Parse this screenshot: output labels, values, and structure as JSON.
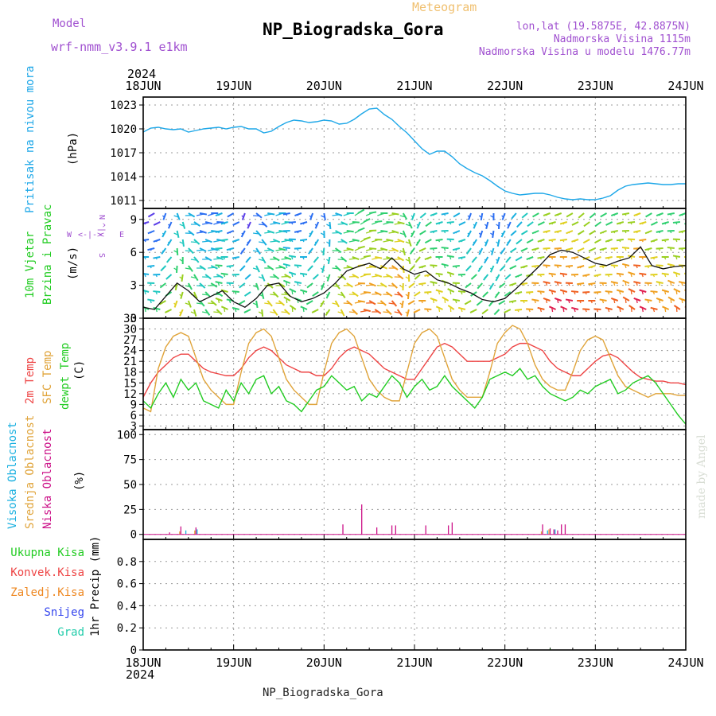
{
  "header": {
    "model_label": "Model",
    "model_name": "wrf-nmm_v3.9.1  e1km",
    "product": "Meteogram",
    "station": "NP_Biogradska_Gora",
    "lonlat": "lon,lat (19.5875E, 42.8875N)",
    "altitude": "Nadmorska Visina 1115m",
    "model_altitude": "Nadmorska Visina u modelu 1476.77m",
    "watermark": "made by Angel",
    "footer_station": "NP_Biogradska_Gora"
  },
  "colors": {
    "pressure": "#1da7e8",
    "temp2m": "#ee4444",
    "sfc": "#e0a43a",
    "dewpt": "#22cc22",
    "high_cloud": "#1ab0e0",
    "mid_cloud": "#e0a43a",
    "low_cloud": "#cc1188",
    "model": "#a050d0",
    "total_precip": "#22cc22",
    "conv_precip": "#ee4444",
    "frz_precip": "#ee8822",
    "snow": "#3344ee",
    "grad": "#22ccaa"
  },
  "chart_data": {
    "type": "line",
    "time_axis": {
      "year": "2024",
      "start": "2024-06-18T00",
      "end": "2024-06-24T00",
      "ticks": [
        "18JUN",
        "19JUN",
        "20JUN",
        "21JUN",
        "22JUN",
        "23JUN",
        "24JUN"
      ]
    },
    "panels": [
      {
        "id": "pressure",
        "title": "Pritisak na nivou mora",
        "unit": "(hPa)",
        "ylim": [
          1010,
          1024
        ],
        "yticks": [
          1011,
          1014,
          1017,
          1020,
          1023
        ],
        "series": [
          {
            "name": "Pritisak na nivou mora",
            "hours": [
              0,
              2,
              4,
              6,
              8,
              10,
              12,
              14,
              16,
              18,
              20,
              22,
              24,
              26,
              28,
              30,
              32,
              34,
              36,
              38,
              40,
              42,
              44,
              46,
              48,
              50,
              52,
              54,
              56,
              58,
              60,
              62,
              64,
              66,
              68,
              70,
              72,
              74,
              76,
              78,
              80,
              82,
              84,
              86,
              88,
              90,
              92,
              94,
              96,
              98,
              100,
              102,
              104,
              106,
              108,
              110,
              112,
              114,
              116,
              118,
              120,
              122,
              124,
              126,
              128,
              130,
              132,
              134,
              136,
              138,
              140,
              142,
              144
            ],
            "values": [
              1019.6,
              1020.1,
              1020.2,
              1020.0,
              1019.9,
              1020.0,
              1019.6,
              1019.8,
              1020.0,
              1020.1,
              1020.2,
              1020.0,
              1020.2,
              1020.3,
              1020.0,
              1020.0,
              1019.5,
              1019.7,
              1020.3,
              1020.8,
              1021.1,
              1021.0,
              1020.8,
              1020.9,
              1021.1,
              1021.0,
              1020.6,
              1020.7,
              1021.2,
              1021.9,
              1022.5,
              1022.6,
              1021.8,
              1021.2,
              1020.3,
              1019.5,
              1018.5,
              1017.5,
              1016.8,
              1017.2,
              1017.2,
              1016.5,
              1015.6,
              1015.0,
              1014.5,
              1014.1,
              1013.5,
              1012.8,
              1012.2,
              1011.9,
              1011.7,
              1011.8,
              1011.9,
              1011.9,
              1011.7,
              1011.4,
              1011.2,
              1011.1,
              1011.2,
              1011.1,
              1011.1,
              1011.3,
              1011.6,
              1012.3,
              1012.8,
              1013.0,
              1013.1,
              1013.2,
              1013.1,
              1013.0,
              1013.0,
              1013.1,
              1013.1
            ]
          }
        ]
      },
      {
        "id": "wind",
        "title_line1": "10m Vjetar",
        "title_line2": "Brzina i Pravac",
        "unit": "(m/s)",
        "ylim": [
          0,
          10
        ],
        "yticks": [
          0,
          3,
          6,
          9
        ],
        "compass_labels": [
          "W",
          "<-|->",
          "E",
          "N",
          "^",
          "v",
          "S"
        ],
        "series": [
          {
            "name": "10m Vjetar",
            "hours": [
              0,
              3,
              6,
              9,
              12,
              15,
              18,
              21,
              24,
              27,
              30,
              33,
              36,
              39,
              42,
              45,
              48,
              51,
              54,
              57,
              60,
              63,
              66,
              69,
              72,
              75,
              78,
              81,
              84,
              87,
              90,
              93,
              96,
              99,
              102,
              105,
              108,
              111,
              114,
              117,
              120,
              123,
              126,
              129,
              132,
              135,
              138,
              141,
              144
            ],
            "values": [
              1.0,
              0.8,
              2.0,
              3.2,
              2.5,
              1.5,
              2.0,
              2.5,
              1.5,
              1.0,
              1.8,
              3.0,
              3.2,
              2.0,
              1.5,
              1.8,
              2.3,
              3.2,
              4.3,
              4.7,
              5.0,
              4.5,
              5.5,
              4.5,
              4.0,
              4.3,
              3.5,
              3.2,
              2.7,
              2.3,
              1.7,
              1.5,
              1.8,
              2.7,
              3.7,
              4.7,
              5.8,
              6.2,
              6.0,
              5.5,
              5.0,
              4.8,
              5.2,
              5.5,
              6.5,
              4.8,
              4.5,
              4.7,
              4.8
            ],
            "direction_vectors_deg": [
              250,
              240,
              200,
              160,
              120,
              100,
              90,
              250,
              240,
              200,
              130,
              100,
              90,
              260,
              250,
              200,
              170,
              110,
              90,
              60,
              80,
              90,
              100,
              150,
              200,
              230,
              250,
              260,
              240,
              200,
              190,
              180,
              200,
              220,
              230,
              240,
              250,
              250,
              240,
              230,
              230,
              240,
              250,
              260,
              250,
              240,
              250,
              260,
              250
            ]
          }
        ]
      },
      {
        "id": "temperature",
        "title_line1": "2m Temp",
        "title_line2": "SFC Temp",
        "title_line3": "dewpt Temp",
        "unit": "(C)",
        "ylim": [
          2,
          33
        ],
        "yticks": [
          3,
          6,
          9,
          12,
          15,
          18,
          21,
          24,
          27,
          30,
          33
        ],
        "series": [
          {
            "name": "2m Temp",
            "hours": [
              0,
              2,
              4,
              6,
              8,
              10,
              12,
              14,
              16,
              18,
              20,
              22,
              24,
              26,
              28,
              30,
              32,
              34,
              36,
              38,
              40,
              42,
              44,
              46,
              48,
              50,
              52,
              54,
              56,
              58,
              60,
              62,
              64,
              66,
              68,
              70,
              72,
              74,
              76,
              78,
              80,
              82,
              84,
              86,
              88,
              90,
              92,
              94,
              96,
              98,
              100,
              102,
              104,
              106,
              108,
              110,
              112,
              114,
              116,
              118,
              120,
              122,
              124,
              126,
              128,
              130,
              132,
              134,
              136,
              138,
              140,
              142,
              144
            ],
            "values": [
              11,
              15,
              18,
              20,
              22,
              23,
              23,
              21,
              19,
              18,
              17.5,
              17,
              17,
              19,
              22,
              24,
              25,
              24,
              22,
              20,
              19,
              18,
              18,
              17,
              17,
              19,
              22,
              24,
              25,
              24,
              23,
              21,
              19,
              18,
              17,
              16,
              16,
              19,
              22,
              25,
              26,
              25,
              23,
              21,
              21,
              21,
              21,
              22,
              23,
              25,
              26,
              26,
              25,
              24,
              21,
              19,
              18,
              17,
              17,
              19,
              21,
              22.5,
              23,
              22,
              20,
              18,
              16.5,
              16,
              15.5,
              15.5,
              15,
              15,
              14.5
            ]
          },
          {
            "name": "SFC Temp",
            "hours": [
              0,
              2,
              4,
              6,
              8,
              10,
              12,
              14,
              16,
              18,
              20,
              22,
              24,
              26,
              28,
              30,
              32,
              34,
              36,
              38,
              40,
              42,
              44,
              46,
              48,
              50,
              52,
              54,
              56,
              58,
              60,
              62,
              64,
              66,
              68,
              70,
              72,
              74,
              76,
              78,
              80,
              82,
              84,
              86,
              88,
              90,
              92,
              94,
              96,
              98,
              100,
              102,
              104,
              106,
              108,
              110,
              112,
              114,
              116,
              118,
              120,
              122,
              124,
              126,
              128,
              130,
              132,
              134,
              136,
              138,
              140,
              142,
              144
            ],
            "values": [
              8,
              7,
              19,
              25,
              28,
              29,
              28,
              22,
              16,
              13,
              11,
              9,
              9,
              18,
              26,
              29,
              30,
              28,
              22,
              16,
              13,
              11,
              9,
              9,
              18,
              26,
              29,
              30,
              28,
              22,
              16,
              13,
              11,
              10,
              10,
              18,
              26,
              29,
              30,
              28,
              22,
              16,
              13,
              11,
              11,
              11,
              18,
              26,
              29,
              31,
              30,
              26,
              20,
              16,
              14,
              13,
              13,
              18,
              24,
              27,
              28,
              27,
              22,
              17,
              14,
              13,
              12,
              11,
              12,
              12,
              12,
              11.5,
              11.5
            ]
          },
          {
            "name": "dewpt Temp",
            "hours": [
              0,
              2,
              4,
              6,
              8,
              10,
              12,
              14,
              16,
              18,
              20,
              22,
              24,
              26,
              28,
              30,
              32,
              34,
              36,
              38,
              40,
              42,
              44,
              46,
              48,
              50,
              52,
              54,
              56,
              58,
              60,
              62,
              64,
              66,
              68,
              70,
              72,
              74,
              76,
              78,
              80,
              82,
              84,
              86,
              88,
              90,
              92,
              94,
              96,
              98,
              100,
              102,
              104,
              106,
              108,
              110,
              112,
              114,
              116,
              118,
              120,
              122,
              124,
              126,
              128,
              130,
              132,
              134,
              136,
              138,
              140,
              142,
              144
            ],
            "values": [
              10,
              8,
              12,
              15,
              11,
              16,
              13,
              15,
              10,
              9,
              8,
              13,
              10,
              15,
              12,
              16,
              17,
              12,
              14,
              10,
              9,
              7,
              10,
              13,
              14,
              17,
              15,
              13,
              14,
              10,
              12,
              11,
              14,
              17,
              15,
              11,
              14,
              16,
              13,
              14,
              17,
              14,
              12,
              10,
              8,
              11,
              16,
              17,
              18,
              17,
              19,
              16,
              17,
              14,
              12,
              11,
              10,
              11,
              13,
              12,
              14,
              15,
              16,
              12,
              13,
              15,
              16,
              17,
              15,
              12,
              9,
              6,
              3.5
            ]
          }
        ]
      },
      {
        "id": "clouds",
        "title_line1": "Visoka Oblacnost",
        "title_line2": "Srednja Oblacnost",
        "title_line3": "Niska Oblacnost",
        "unit": "(%)",
        "ylim": [
          -5,
          105
        ],
        "yticks": [
          0,
          25,
          50,
          75,
          100
        ],
        "bars": [
          {
            "name": "Niska Oblacnost",
            "hours": [
              7,
              10,
              14,
              53,
              58,
              62,
              66,
              67,
              75,
              81,
              82,
              106,
              108,
              109,
              110,
              111,
              112
            ],
            "values": [
              2,
              8,
              7,
              10,
              30,
              7,
              9,
              9,
              9,
              9,
              12,
              10,
              6,
              5,
              4,
              10,
              10
            ]
          },
          {
            "name": "Srednja Oblacnost",
            "hours": [
              10,
              14,
              106,
              108
            ],
            "values": [
              3,
              4,
              3,
              5
            ]
          },
          {
            "name": "Visoka Oblacnost",
            "hours": [
              11,
              14,
              107,
              109
            ],
            "values": [
              4,
              5,
              4,
              5
            ]
          }
        ]
      },
      {
        "id": "precip",
        "title_lines": [
          "Ukupna Kisa",
          "Konvek.Kisa",
          "Zaledj.Kisa",
          "Snijeg",
          "Grad"
        ],
        "unit": "1hr Precip (mm)",
        "ylim": [
          0,
          1.0
        ],
        "yticks": [
          0,
          0.2,
          0.4,
          0.6,
          0.8
        ],
        "bars": [
          {
            "name": "Ukupna Kisa",
            "hours": [
              108
            ],
            "values": [
              0.01
            ]
          }
        ]
      }
    ]
  }
}
